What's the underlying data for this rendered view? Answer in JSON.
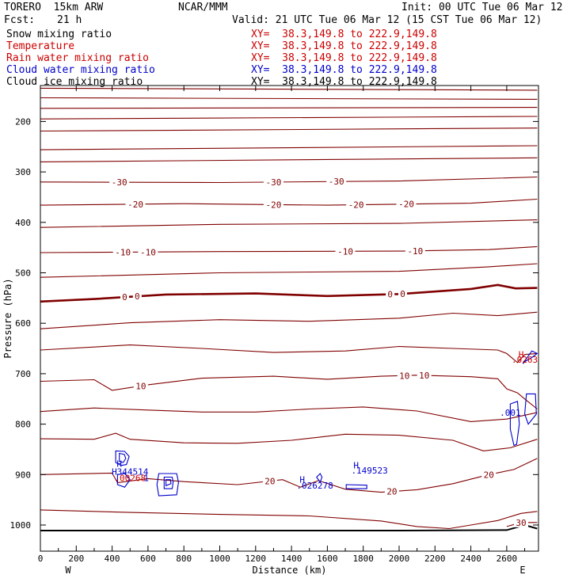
{
  "header": {
    "model": "TORERO  15km ARW",
    "center": "NCAR/MMM",
    "init": "Init: 00 UTC Tue 06 Mar 12",
    "fcst_label": "Fcst:",
    "fcst_value": "21 h",
    "valid": "Valid: 21 UTC Tue 06 Mar 12 (15 CST Tue 06 Mar 12)"
  },
  "fields": [
    {
      "name": "Snow mixing ratio",
      "xy": "XY=  38.3,149.8 to 222.9,149.8",
      "color": "#000000"
    },
    {
      "name": "Temperature",
      "xy": "XY=  38.3,149.8 to 222.9,149.8",
      "color": "#cc0000"
    },
    {
      "name": "Rain water mixing ratio",
      "xy": "XY=  38.3,149.8 to 222.9,149.8",
      "color": "#cc0000"
    },
    {
      "name": "Cloud water mixing ratio",
      "xy": "XY=  38.3,149.8 to 222.9,149.8",
      "color": "#0000cc"
    },
    {
      "name": "Cloud ice mixing ratio",
      "xy": "XY=  38.3,149.8 to 222.9,149.8",
      "color": "#000000"
    }
  ],
  "chart_data": {
    "type": "contour-cross-section",
    "xlabel": "Distance (km)",
    "ylabel": "Pressure (hPa)",
    "xlim": [
      0,
      2770
    ],
    "ylim": [
      1040,
      100
    ],
    "x_ticks": [
      0,
      200,
      400,
      600,
      800,
      1000,
      1200,
      1400,
      1600,
      1800,
      2000,
      2200,
      2400,
      2600
    ],
    "y_ticks": [
      200,
      300,
      400,
      500,
      600,
      700,
      800,
      900,
      1000
    ],
    "left_end_label": "W",
    "right_end_label": "E",
    "isotherm_color": "#800000",
    "cloud_color": "#0000cc",
    "isotherms": [
      {
        "points": [
          [
            0,
            118
          ],
          [
            2770,
            125
          ]
        ]
      },
      {
        "points": [
          [
            0,
            134
          ],
          [
            2770,
            138
          ]
        ]
      },
      {
        "points": [
          [
            0,
            153
          ],
          [
            2770,
            156
          ]
        ]
      },
      {
        "points": [
          [
            0,
            174
          ],
          [
            2770,
            172
          ]
        ]
      },
      {
        "points": [
          [
            0,
            195
          ],
          [
            2770,
            190
          ]
        ]
      },
      {
        "points": [
          [
            0,
            219
          ],
          [
            2770,
            213
          ]
        ]
      },
      {
        "points": [
          [
            0,
            256
          ],
          [
            2770,
            248
          ]
        ]
      },
      {
        "points": [
          [
            0,
            280
          ],
          [
            2770,
            272
          ]
        ]
      },
      {
        "points": [
          [
            0,
            320
          ],
          [
            1000,
            321
          ],
          [
            2000,
            318
          ],
          [
            2770,
            310
          ]
        ],
        "labels": [
          {
            "x": 440,
            "text": "-30"
          },
          {
            "x": 1300,
            "text": "-30"
          },
          {
            "x": 1650,
            "text": "-30"
          }
        ]
      },
      {
        "points": [
          [
            0,
            366
          ],
          [
            800,
            363
          ],
          [
            1600,
            366
          ],
          [
            2400,
            362
          ],
          [
            2770,
            354
          ]
        ],
        "labels": [
          {
            "x": 530,
            "text": "-20"
          },
          {
            "x": 1300,
            "text": "-20"
          },
          {
            "x": 1760,
            "text": "-20"
          },
          {
            "x": 2040,
            "text": "-20"
          }
        ]
      },
      {
        "points": [
          [
            0,
            410
          ],
          [
            1000,
            404
          ],
          [
            2000,
            402
          ],
          [
            2770,
            395
          ]
        ]
      },
      {
        "points": [
          [
            0,
            460
          ],
          [
            1000,
            458
          ],
          [
            2000,
            457
          ],
          [
            2500,
            454
          ],
          [
            2770,
            448
          ]
        ],
        "labels": [
          {
            "x": 460,
            "text": "-10"
          },
          {
            "x": 600,
            "text": "-10"
          },
          {
            "x": 1700,
            "text": "-10"
          },
          {
            "x": 2090,
            "text": "-10"
          }
        ]
      },
      {
        "points": [
          [
            0,
            509
          ],
          [
            1000,
            500
          ],
          [
            2000,
            497
          ],
          [
            2500,
            488
          ],
          [
            2770,
            482
          ]
        ]
      },
      {
        "points": [
          [
            0,
            557
          ],
          [
            300,
            552
          ],
          [
            700,
            543
          ],
          [
            1200,
            541
          ],
          [
            1600,
            546
          ],
          [
            2000,
            542
          ],
          [
            2400,
            532
          ],
          [
            2550,
            524
          ],
          [
            2650,
            531
          ],
          [
            2770,
            530
          ]
        ],
        "width": 2.6,
        "labels": [
          {
            "x": 470,
            "text": "0"
          },
          {
            "x": 540,
            "text": "0"
          },
          {
            "x": 1950,
            "text": "0"
          },
          {
            "x": 2020,
            "text": "0"
          }
        ]
      },
      {
        "points": [
          [
            0,
            611
          ],
          [
            500,
            599
          ],
          [
            1000,
            593
          ],
          [
            1500,
            596
          ],
          [
            2000,
            590
          ],
          [
            2300,
            580
          ],
          [
            2550,
            585
          ],
          [
            2770,
            578
          ]
        ]
      },
      {
        "points": [
          [
            0,
            653
          ],
          [
            500,
            643
          ],
          [
            900,
            650
          ],
          [
            1300,
            658
          ],
          [
            1700,
            655
          ],
          [
            2000,
            646
          ],
          [
            2300,
            650
          ],
          [
            2550,
            653
          ],
          [
            2600,
            660
          ],
          [
            2660,
            678
          ],
          [
            2700,
            662
          ],
          [
            2770,
            660
          ]
        ]
      },
      {
        "points": [
          [
            0,
            715
          ],
          [
            300,
            712
          ],
          [
            400,
            733
          ],
          [
            600,
            722
          ],
          [
            900,
            709
          ],
          [
            1300,
            705
          ],
          [
            1600,
            711
          ],
          [
            1900,
            705
          ],
          [
            2100,
            703
          ],
          [
            2400,
            706
          ],
          [
            2550,
            710
          ],
          [
            2600,
            730
          ],
          [
            2660,
            738
          ],
          [
            2700,
            750
          ],
          [
            2770,
            770
          ]
        ],
        "labels": [
          {
            "x": 560,
            "text": "10"
          },
          {
            "x": 2030,
            "text": "10"
          },
          {
            "x": 2140,
            "text": "10"
          }
        ]
      },
      {
        "points": [
          [
            0,
            775
          ],
          [
            300,
            768
          ],
          [
            600,
            772
          ],
          [
            900,
            776
          ],
          [
            1200,
            776
          ],
          [
            1500,
            770
          ],
          [
            1800,
            766
          ],
          [
            2100,
            774
          ],
          [
            2400,
            795
          ],
          [
            2600,
            790
          ],
          [
            2770,
            777
          ]
        ]
      },
      {
        "points": [
          [
            0,
            829
          ],
          [
            300,
            830
          ],
          [
            420,
            818
          ],
          [
            500,
            830
          ],
          [
            800,
            837
          ],
          [
            1100,
            838
          ],
          [
            1400,
            832
          ],
          [
            1700,
            820
          ],
          [
            2000,
            822
          ],
          [
            2300,
            832
          ],
          [
            2470,
            853
          ],
          [
            2620,
            847
          ],
          [
            2770,
            830
          ]
        ]
      },
      {
        "points": [
          [
            0,
            900
          ],
          [
            400,
            897
          ],
          [
            430,
            916
          ],
          [
            600,
            908
          ],
          [
            800,
            914
          ],
          [
            1100,
            920
          ],
          [
            1350,
            910
          ],
          [
            1450,
            925
          ],
          [
            1550,
            912
          ],
          [
            1700,
            929
          ],
          [
            1900,
            935
          ],
          [
            2100,
            930
          ],
          [
            2300,
            918
          ],
          [
            2500,
            900
          ],
          [
            2640,
            890
          ],
          [
            2770,
            868
          ]
        ],
        "labels": [
          {
            "x": 1280,
            "text": "20"
          },
          {
            "x": 1960,
            "text": "20"
          },
          {
            "x": 2500,
            "text": "20"
          }
        ]
      },
      {
        "points": [
          [
            0,
            970
          ],
          [
            500,
            975
          ],
          [
            1000,
            979
          ],
          [
            1500,
            982
          ],
          [
            1900,
            992
          ],
          [
            2100,
            1003
          ],
          [
            2280,
            1007
          ],
          [
            2400,
            1000
          ],
          [
            2550,
            991
          ],
          [
            2680,
            977
          ],
          [
            2770,
            973
          ]
        ]
      },
      {
        "points": [
          [
            2600,
            1003
          ],
          [
            2680,
            995
          ],
          [
            2770,
            995
          ]
        ],
        "labels": [
          {
            "x": 2680,
            "text": "30"
          }
        ]
      }
    ],
    "cloud_contours": [
      {
        "points": [
          [
            420,
            853
          ],
          [
            470,
            854
          ],
          [
            495,
            864
          ],
          [
            480,
            880
          ],
          [
            450,
            882
          ],
          [
            420,
            876
          ]
        ]
      },
      {
        "points": [
          [
            440,
            858
          ],
          [
            468,
            860
          ],
          [
            476,
            868
          ],
          [
            462,
            876
          ],
          [
            440,
            874
          ]
        ]
      },
      {
        "points": [
          [
            430,
            900
          ],
          [
            470,
            898
          ],
          [
            500,
            910
          ],
          [
            470,
            925
          ],
          [
            430,
            920
          ]
        ]
      },
      {
        "points": [
          [
            660,
            898
          ],
          [
            760,
            898
          ],
          [
            770,
            915
          ],
          [
            760,
            940
          ],
          [
            660,
            942
          ],
          [
            650,
            920
          ]
        ]
      },
      {
        "points": [
          [
            690,
            905
          ],
          [
            735,
            905
          ],
          [
            740,
            915
          ],
          [
            735,
            928
          ],
          [
            690,
            928
          ]
        ]
      },
      {
        "points": [
          [
            700,
            910
          ],
          [
            725,
            910
          ],
          [
            728,
            918
          ],
          [
            700,
            922
          ]
        ]
      },
      {
        "points": [
          [
            1540,
            905
          ],
          [
            1560,
            898
          ],
          [
            1570,
            905
          ],
          [
            1560,
            915
          ]
        ]
      },
      {
        "points": [
          [
            1705,
            920
          ],
          [
            1820,
            921
          ],
          [
            1820,
            928
          ],
          [
            1705,
            928
          ]
        ]
      },
      {
        "points": [
          [
            2620,
            760
          ],
          [
            2660,
            755
          ],
          [
            2670,
            800
          ],
          [
            2655,
            840
          ],
          [
            2640,
            842
          ],
          [
            2620,
            810
          ]
        ]
      },
      {
        "points": [
          [
            2710,
            740
          ],
          [
            2760,
            740
          ],
          [
            2765,
            780
          ],
          [
            2720,
            800
          ],
          [
            2700,
            780
          ]
        ]
      },
      {
        "points": [
          [
            2690,
            680
          ],
          [
            2740,
            655
          ],
          [
            2770,
            660
          ],
          [
            2740,
            668
          ],
          [
            2705,
            675
          ]
        ]
      }
    ],
    "annotations": [
      {
        "x": 440,
        "p": 885,
        "text": "H",
        "color": "#0000cc"
      },
      {
        "x": 500,
        "p": 900,
        "text": "H344514",
        "color": "#0000cc"
      },
      {
        "x": 500,
        "p": 913,
        "text": ".00268",
        "color": "#cc0000"
      },
      {
        "x": 590,
        "p": 913,
        "text": "1",
        "color": "#0000cc"
      },
      {
        "x": 1460,
        "p": 916,
        "text": "H",
        "color": "#0000cc"
      },
      {
        "x": 1530,
        "p": 928,
        "text": ".026278",
        "color": "#0000cc"
      },
      {
        "x": 1760,
        "p": 888,
        "text": "H",
        "color": "#0000cc"
      },
      {
        "x": 1835,
        "p": 898,
        "text": ".149523",
        "color": "#0000cc"
      },
      {
        "x": 2680,
        "p": 668,
        "text": "H",
        "color": "#cc0000"
      },
      {
        "x": 2700,
        "p": 678,
        "text": ".0263",
        "color": "#cc0000"
      },
      {
        "x": 2620,
        "p": 783,
        "text": ".001",
        "color": "#0000cc"
      }
    ],
    "terrain": [
      [
        0,
        1011
      ],
      [
        2000,
        1011
      ],
      [
        2600,
        1010
      ],
      [
        2700,
        1000
      ],
      [
        2770,
        1007
      ]
    ]
  }
}
